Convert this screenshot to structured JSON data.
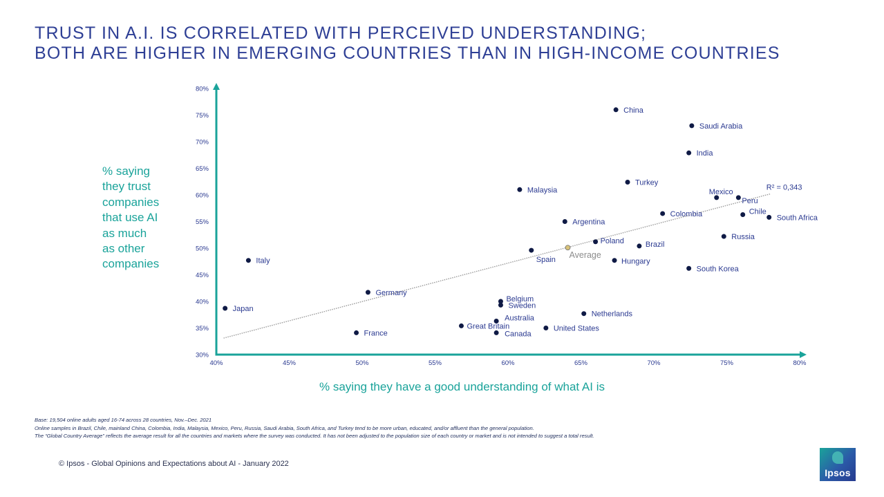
{
  "title": {
    "line1": "TRUST IN A.I. IS CORRELATED WITH PERCEIVED UNDERSTANDING;",
    "line2": "BOTH ARE HIGHER IN EMERGING COUNTRIES THAN IN HIGH-INCOME COUNTRIES"
  },
  "y_label_lines": [
    "% saying",
    "they trust",
    "companies",
    "that use AI",
    "as much",
    "as other",
    "companies"
  ],
  "x_label": "% saying they have a good understanding of what AI is",
  "footnotes": {
    "base": "Base: 19,504 online adults aged 16-74 across 28 countries, Nov.–Dec. 2021",
    "samples": "Online samples in Brazil, Chile, mainland China, Colombia, India, Malaysia, Mexico, Peru, Russia, Saudi Arabia, South Africa, and Turkey tend to be more urban, educated, and/or affluent than the general population.",
    "average": "The “Global  Country Average” reflects the average result for all the countries and markets where the survey was conducted. It has not been adjusted to the population size of each country or market and is not intended to suggest a total result."
  },
  "footer": "© Ipsos - Global Opinions and Expectations about AI - January 2022",
  "logo_text": "Ipsos",
  "colors": {
    "title": "#2e3f95",
    "teal": "#1aa39a",
    "point": "#0f1a45",
    "label": "#2a3990",
    "average_point": "#d8c27a",
    "average_label": "#8c8c8c",
    "trend": "#9a9a9a"
  },
  "chart_data": {
    "type": "scatter",
    "xlabel": "% saying they have a good understanding of what AI is",
    "ylabel": "% saying they trust companies that use AI as much as other companies",
    "xlim": [
      40,
      80
    ],
    "ylim": [
      30,
      80
    ],
    "x_ticks": [
      40,
      45,
      50,
      55,
      60,
      65,
      70,
      75,
      80
    ],
    "y_ticks": [
      30,
      35,
      40,
      45,
      50,
      55,
      60,
      65,
      70,
      75,
      80
    ],
    "tick_suffix": "%",
    "trendline": {
      "label": "R² = 0,343",
      "from": [
        40.5,
        33.1
      ],
      "to": [
        78,
        60.2
      ]
    },
    "points": [
      {
        "name": "China",
        "x": 67.4,
        "y": 76.0
      },
      {
        "name": "Saudi Arabia",
        "x": 72.6,
        "y": 73.0
      },
      {
        "name": "India",
        "x": 72.4,
        "y": 67.9
      },
      {
        "name": "Turkey",
        "x": 68.2,
        "y": 62.4
      },
      {
        "name": "Malaysia",
        "x": 60.8,
        "y": 61.0
      },
      {
        "name": "Mexico",
        "x": 74.3,
        "y": 59.5
      },
      {
        "name": "Peru",
        "x": 75.8,
        "y": 59.5
      },
      {
        "name": "Colombia",
        "x": 70.6,
        "y": 56.5
      },
      {
        "name": "Chile",
        "x": 76.1,
        "y": 56.3
      },
      {
        "name": "South Africa",
        "x": 77.9,
        "y": 55.8
      },
      {
        "name": "Argentina",
        "x": 63.9,
        "y": 55.0
      },
      {
        "name": "Russia",
        "x": 74.8,
        "y": 52.2
      },
      {
        "name": "Poland",
        "x": 66.0,
        "y": 51.2
      },
      {
        "name": "Brazil",
        "x": 69.0,
        "y": 50.4
      },
      {
        "name": "Spain",
        "x": 61.6,
        "y": 49.6
      },
      {
        "name": "Hungary",
        "x": 67.3,
        "y": 47.7
      },
      {
        "name": "Italy",
        "x": 42.2,
        "y": 47.7
      },
      {
        "name": "South Korea",
        "x": 72.4,
        "y": 46.2
      },
      {
        "name": "Germany",
        "x": 50.4,
        "y": 41.7
      },
      {
        "name": "Belgium",
        "x": 59.5,
        "y": 40.0
      },
      {
        "name": "Sweden",
        "x": 59.5,
        "y": 39.3
      },
      {
        "name": "Japan",
        "x": 40.6,
        "y": 38.7
      },
      {
        "name": "Netherlands",
        "x": 65.2,
        "y": 37.7
      },
      {
        "name": "Australia",
        "x": 59.2,
        "y": 36.3
      },
      {
        "name": "Great Britain",
        "x": 56.8,
        "y": 35.4
      },
      {
        "name": "United States",
        "x": 62.6,
        "y": 35.0
      },
      {
        "name": "France",
        "x": 49.6,
        "y": 34.1
      },
      {
        "name": "Canada",
        "x": 59.2,
        "y": 34.1
      }
    ],
    "average": {
      "name": "Average",
      "x": 64.1,
      "y": 50.1
    }
  }
}
